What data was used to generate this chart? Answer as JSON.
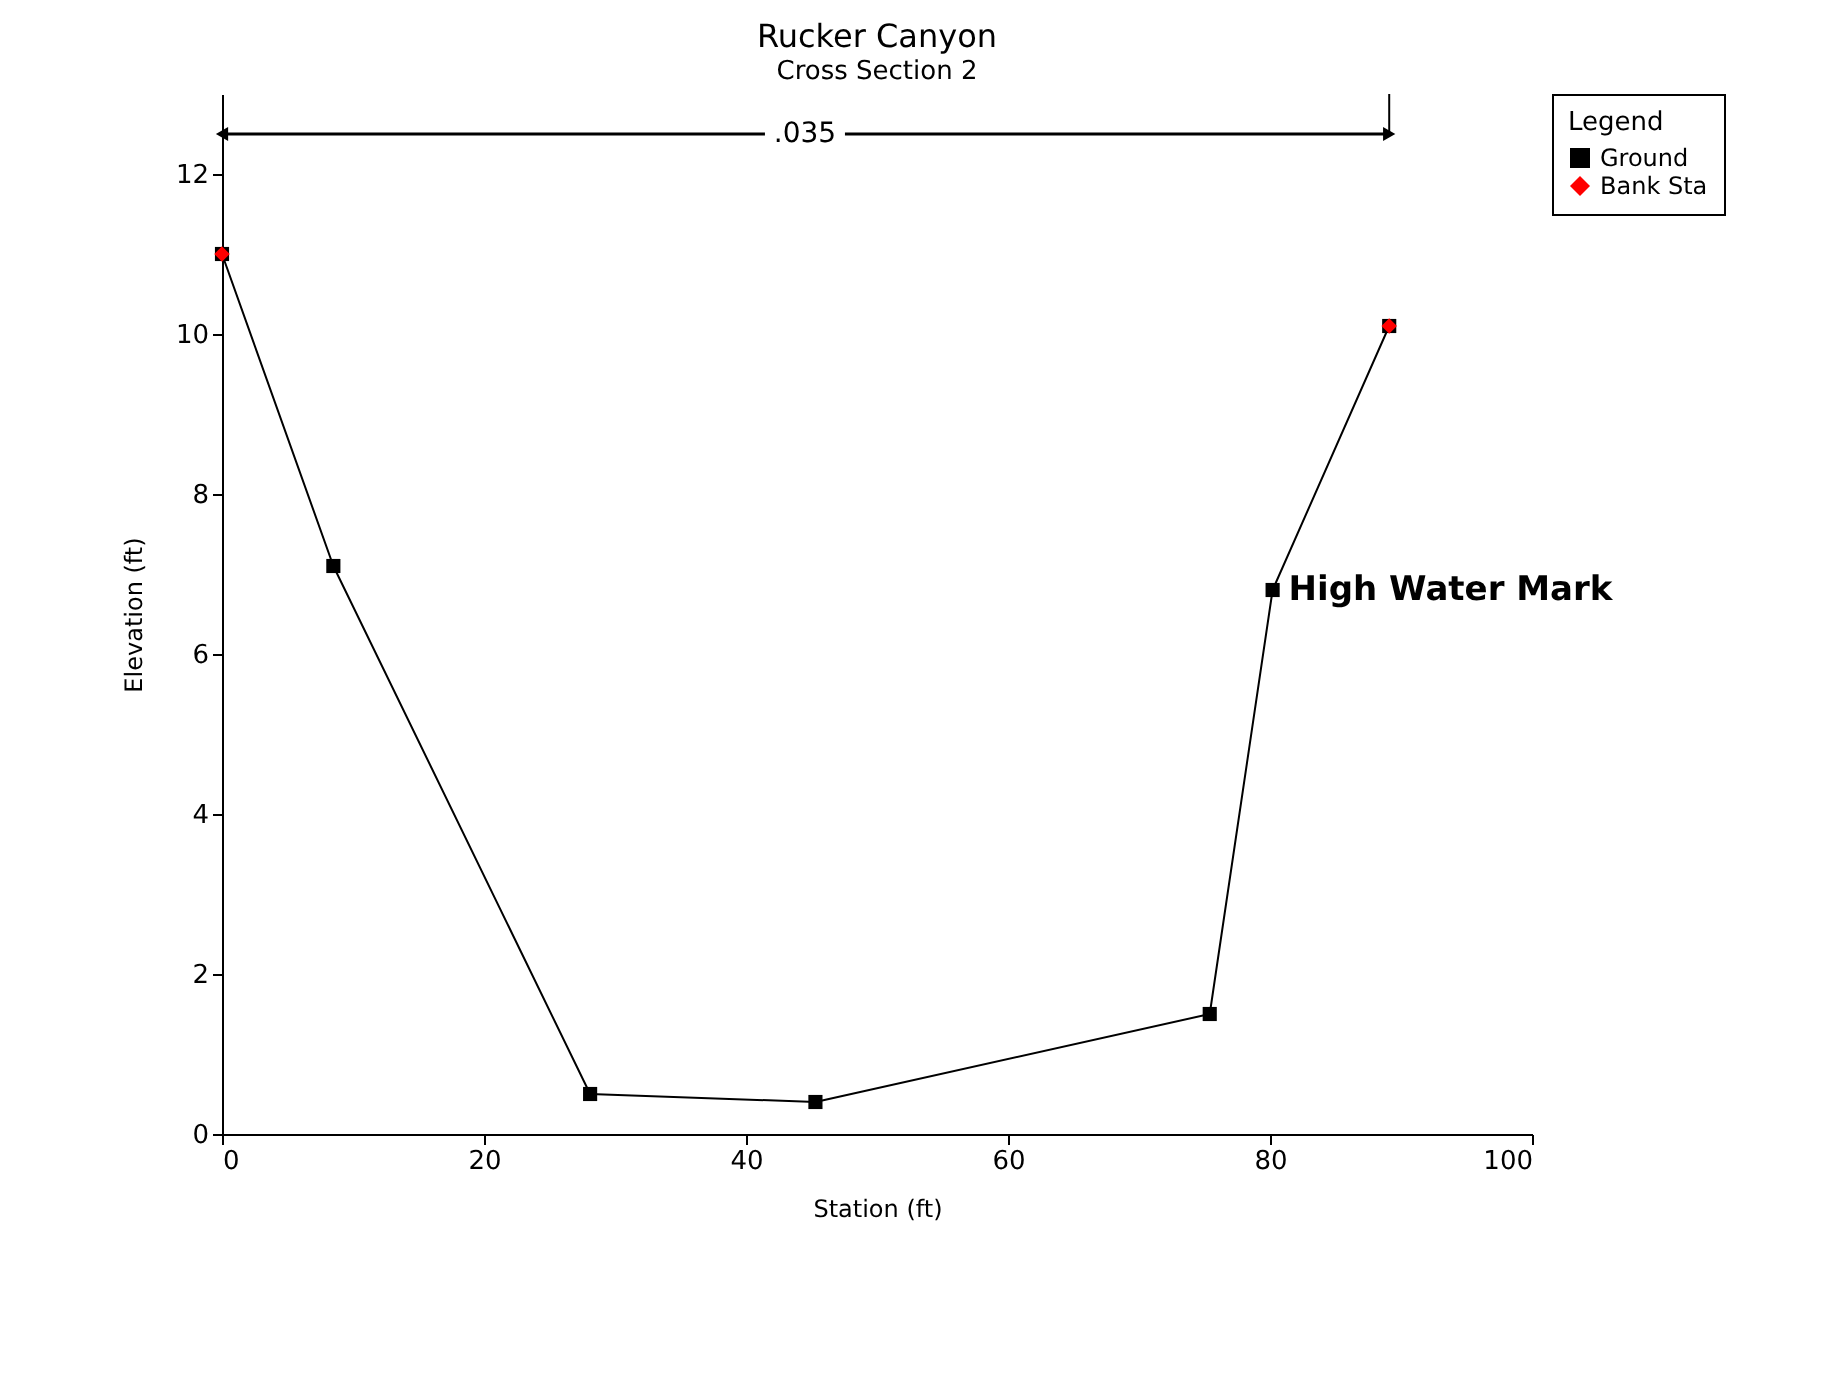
{
  "chart_data": {
    "type": "line",
    "title": "Rucker Canyon",
    "subtitle": "Cross Section 2",
    "xlabel": "Station (ft)",
    "ylabel": "Elevation (ft)",
    "legend_title": "Legend",
    "series": [
      {
        "name": "Ground",
        "color": "#000000",
        "marker": "square",
        "x": [
          0,
          8.5,
          28.1,
          45.3,
          75.4,
          80.2,
          89.1
        ],
        "values": [
          11.0,
          7.1,
          0.5,
          0.4,
          1.5,
          6.8,
          10.1
        ]
      },
      {
        "name": "Bank Sta",
        "type": "scatter",
        "color": "#ff0000",
        "marker": "diamond",
        "x": [
          0,
          89.1
        ],
        "values": [
          11.0,
          10.1
        ]
      },
      {
        "type": "line",
        "color": "#000000",
        "marker": "triangle",
        "x": [
          0,
          89.1
        ],
        "values": [
          12.5,
          12.5
        ]
      }
    ],
    "annotations": [
      {
        "text": ".035",
        "x": 44.5,
        "y": 12.5
      },
      {
        "text": "High Water Mark",
        "x": 80.2,
        "y": 6.8
      }
    ],
    "xlim": [
      0,
      100
    ],
    "xticks": [
      0,
      20,
      40,
      60,
      80,
      100
    ],
    "ylim": [
      0,
      13
    ],
    "yticks": [
      0,
      2,
      4,
      6,
      8,
      10,
      12
    ],
    "grid": false,
    "legend": "top right"
  }
}
